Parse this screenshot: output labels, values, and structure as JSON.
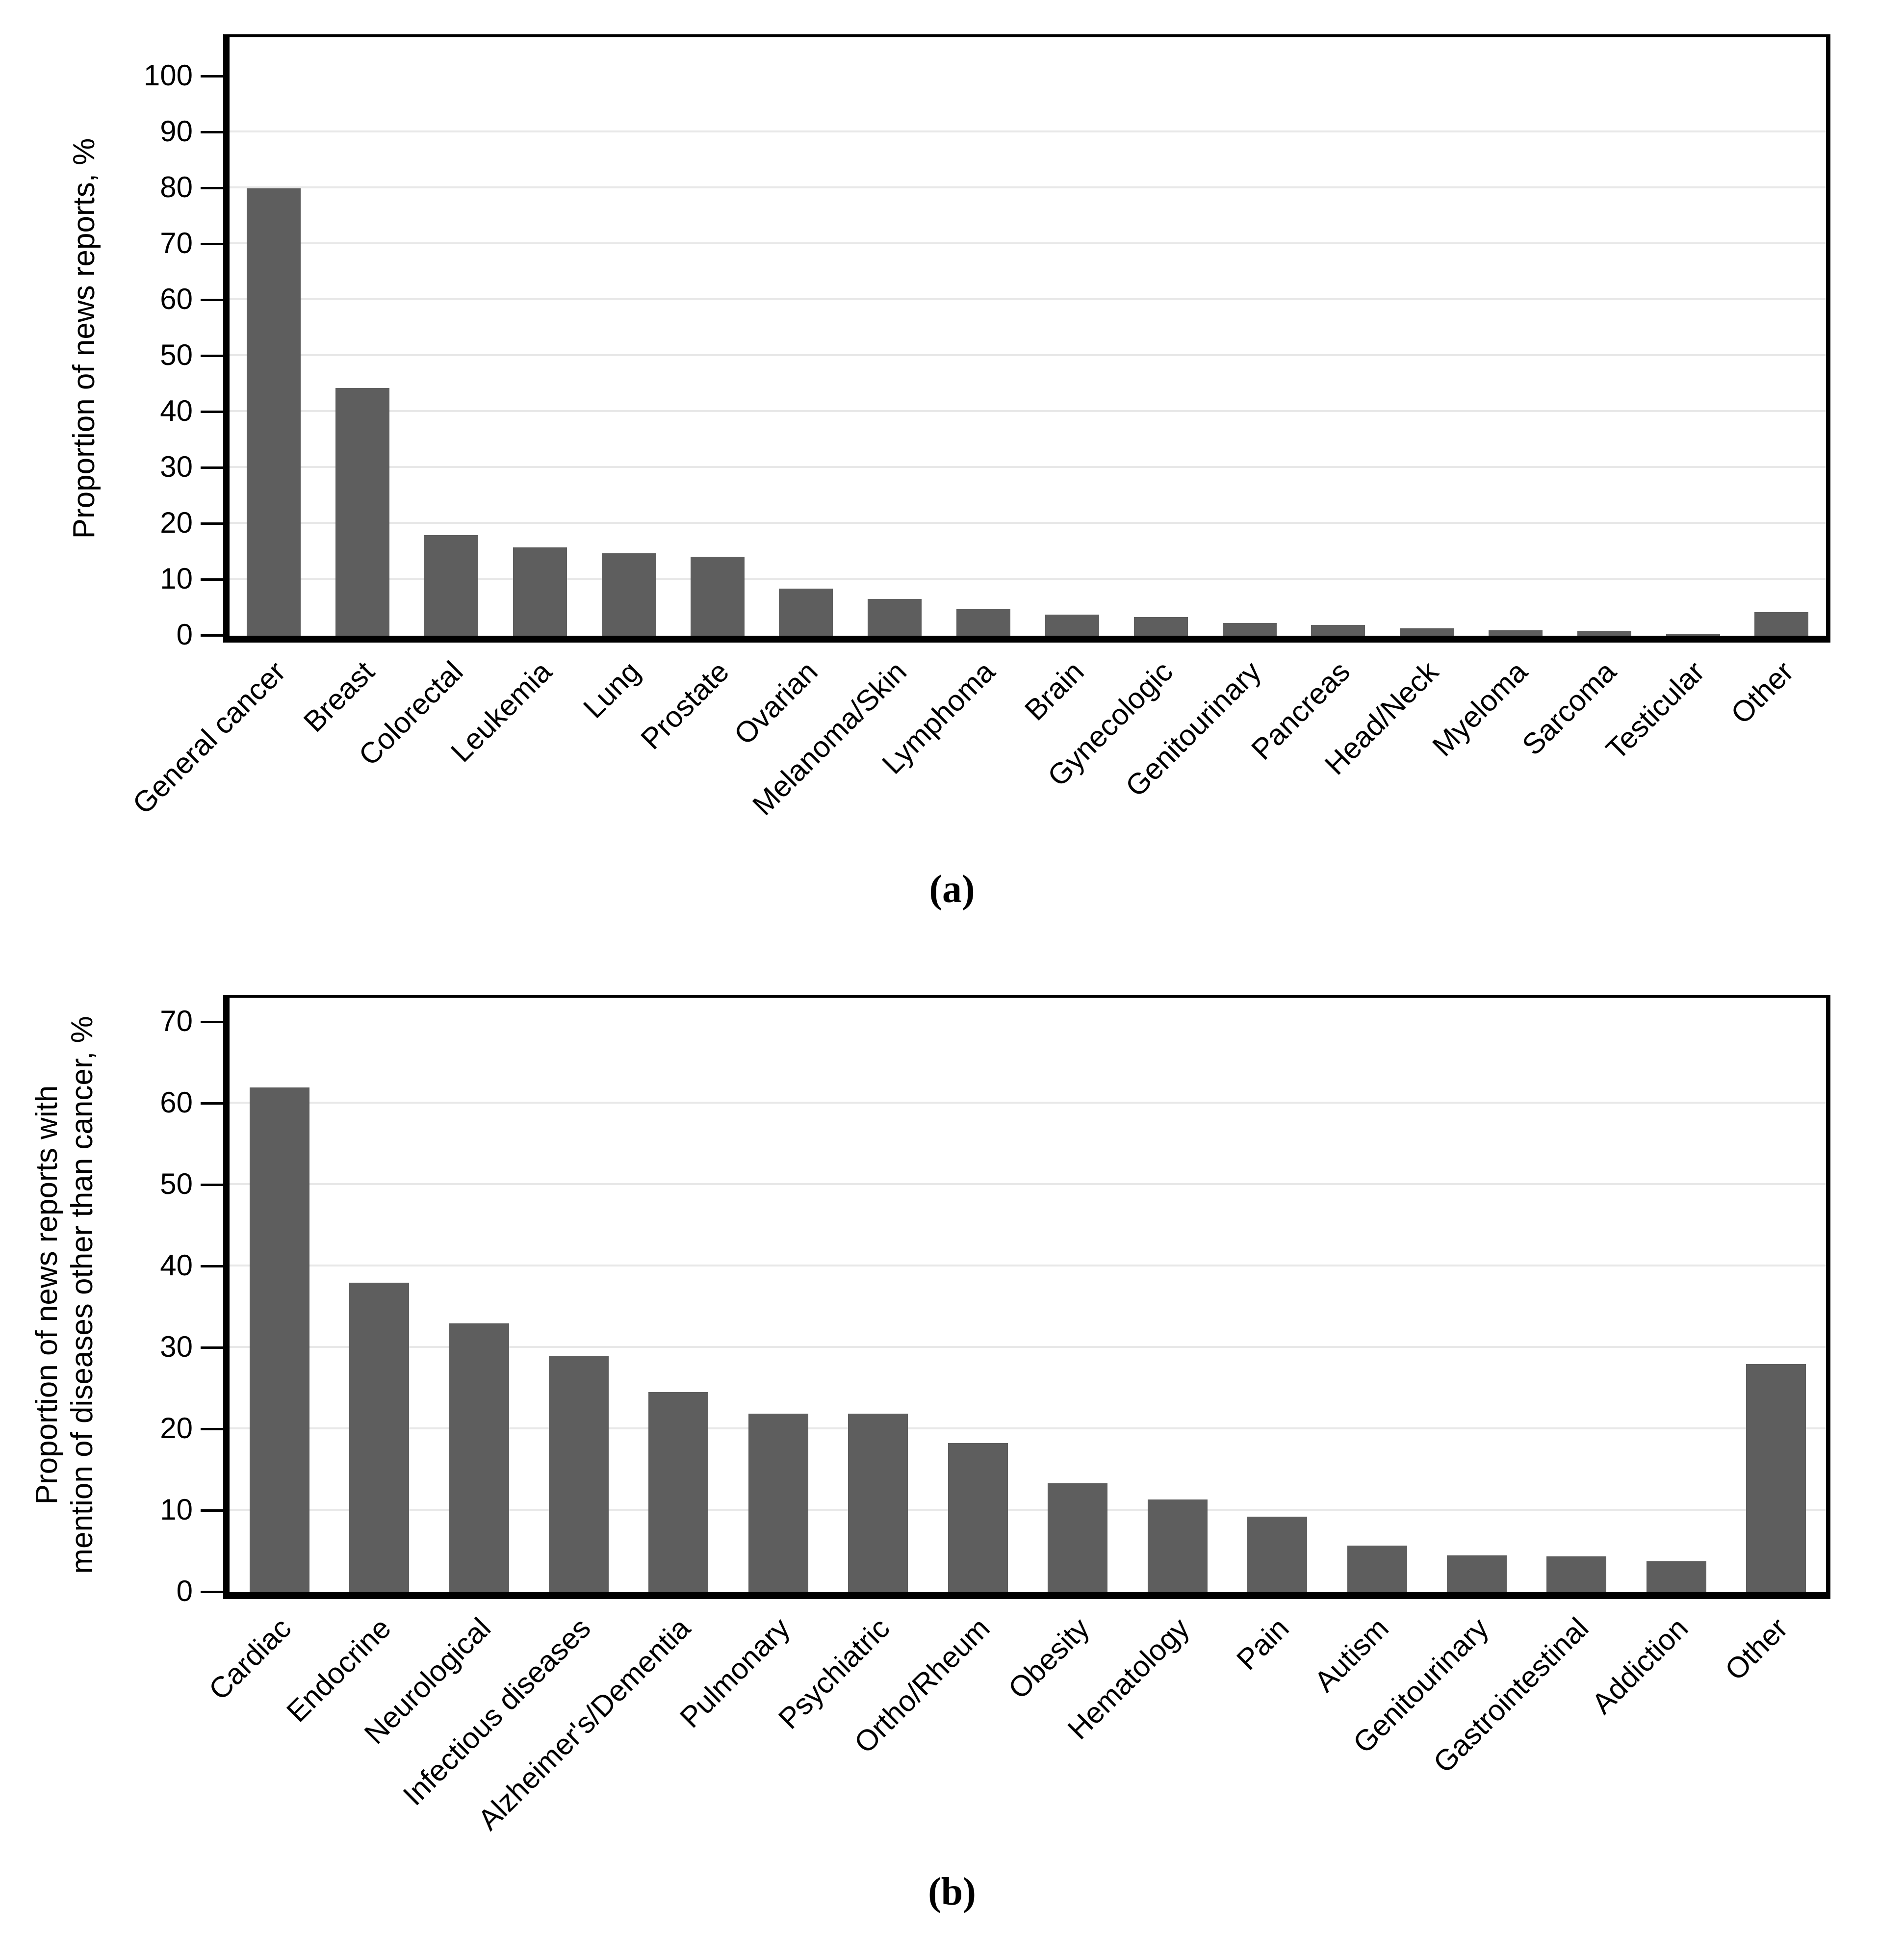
{
  "figure": {
    "bar_color": "#5e5e5e",
    "gridline_color": "#e8e8e8",
    "axis_color": "#000000",
    "background_color": "#ffffff"
  },
  "chart_data": [
    {
      "type": "bar",
      "caption": "(a)",
      "title": "",
      "xlabel": "",
      "ylabel": "Proportion of news reports, %",
      "ylabel_lines": [
        "Proportion of news reports, %"
      ],
      "yticks": [
        0,
        10,
        20,
        30,
        40,
        50,
        60,
        70,
        80,
        90,
        100
      ],
      "ylim": [
        0,
        107
      ],
      "grid": "horizontal, light gray, at ticks 10-90",
      "legend": "none",
      "categories": [
        "General cancer",
        "Breast",
        "Colorectal",
        "Leukemia",
        "Lung",
        "Prostate",
        "Ovarian",
        "Melanoma/Skin",
        "Lymphoma",
        "Brain",
        "Gynecologic",
        "Genitourinary",
        "Pancreas",
        "Head/Neck",
        "Myeloma",
        "Sarcoma",
        "Testicular",
        "Other"
      ],
      "values": [
        80,
        44.3,
        18,
        15.8,
        14.7,
        14.1,
        8.4,
        6.6,
        4.7,
        3.8,
        3.3,
        2.3,
        1.9,
        1.3,
        1.0,
        0.9,
        0.3,
        4.2
      ]
    },
    {
      "type": "bar",
      "caption": "(b)",
      "title": "",
      "xlabel": "",
      "ylabel": "Proportion of news reports with mention of diseases other than cancer, %",
      "ylabel_lines": [
        "Proportion of news reports with",
        "mention of diseases other than cancer, %"
      ],
      "yticks": [
        0,
        10,
        20,
        30,
        40,
        50,
        60,
        70
      ],
      "ylim": [
        0,
        73
      ],
      "grid": "horizontal, light gray, at ticks 10-60",
      "legend": "none",
      "categories": [
        "Cardiac",
        "Endocrine",
        "Neurological",
        "Infectious diseases",
        "Alzheimer's/Dementia",
        "Pulmonary",
        "Psychiatric",
        "Ortho/Rheum",
        "Obesity",
        "Hematology",
        "Pain",
        "Autism",
        "Genitourinary",
        "Gastrointestinal",
        "Addiction",
        "Other"
      ],
      "values": [
        62,
        38,
        33,
        29,
        24.6,
        21.9,
        21.9,
        18.3,
        13.4,
        11.4,
        9.3,
        5.7,
        4.5,
        4.4,
        3.8,
        28
      ]
    }
  ]
}
